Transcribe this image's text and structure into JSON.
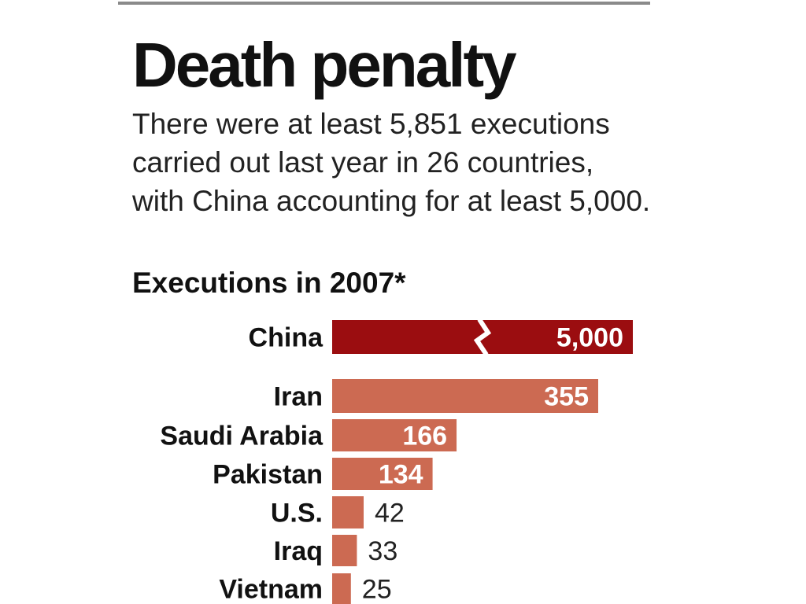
{
  "header": {
    "title": "Death penalty",
    "subtitle": "There were at least 5,851 executions carried out last year in 26 countries, with China accounting for at least 5,000."
  },
  "chart_data": {
    "type": "bar",
    "orientation": "horizontal",
    "title": "Executions in 2007*",
    "categories": [
      "China",
      "Iran",
      "Saudi Arabia",
      "Pakistan",
      "U.S.",
      "Iraq",
      "Vietnam"
    ],
    "values": [
      5000,
      355,
      166,
      134,
      42,
      33,
      25
    ],
    "value_labels": [
      "5,000",
      "355",
      "166",
      "134",
      "42",
      "33",
      "25"
    ],
    "broken_bars": [
      "China"
    ],
    "colors": {
      "highlight": "#9b0d10",
      "bar": "#cc6a52"
    }
  }
}
